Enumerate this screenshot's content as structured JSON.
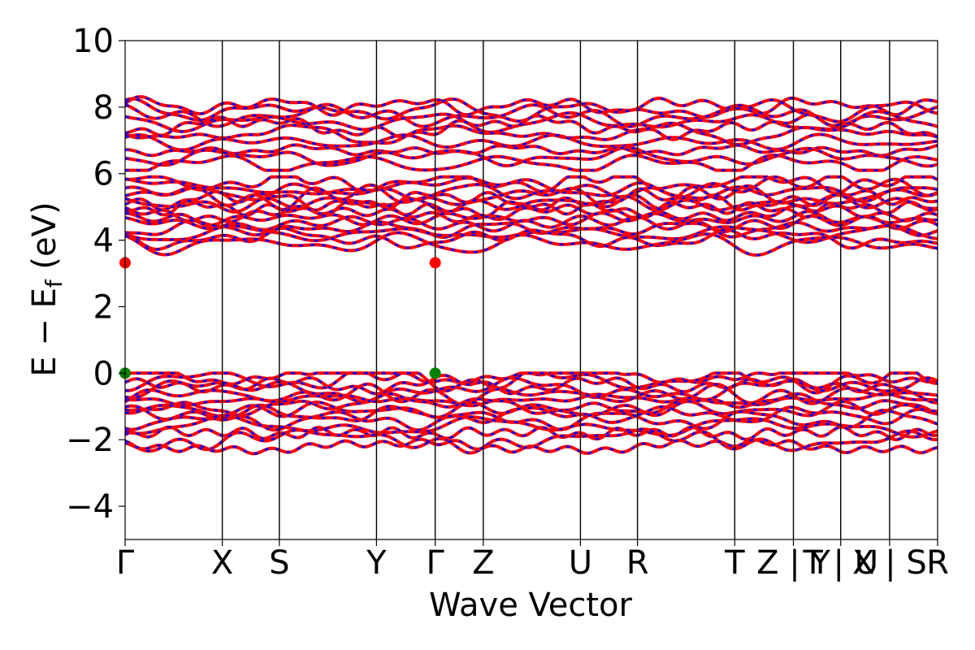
{
  "chart_data": {
    "type": "line",
    "title": "",
    "xlabel": "Wave Vector",
    "ylabel_main": "E − E",
    "ylabel_sub": "f",
    "ylabel_unit": " (eV)",
    "ylim": [
      -5,
      10
    ],
    "yticks": [
      -4,
      -2,
      0,
      2,
      4,
      6,
      8,
      10
    ],
    "ytick_labels": [
      "−4",
      "−2",
      "0",
      "2",
      "4",
      "6",
      "8",
      "10"
    ],
    "x_range": [
      0,
      1
    ],
    "kpoints": [
      {
        "label": "Γ",
        "x": 0.0
      },
      {
        "label": "X",
        "x": 0.1196
      },
      {
        "label": "S",
        "x": 0.1898
      },
      {
        "label": "Y",
        "x": 0.3094
      },
      {
        "label": "Γ",
        "x": 0.3816
      },
      {
        "label": "Z",
        "x": 0.4408
      },
      {
        "label": "U",
        "x": 0.5604
      },
      {
        "label": "R",
        "x": 0.6306
      },
      {
        "label": "T",
        "x": 0.7503
      },
      {
        "label": "Z | Y",
        "x": 0.8225
      },
      {
        "label": "T | U",
        "x": 0.8807
      },
      {
        "label": "X | S",
        "x": 0.9409
      },
      {
        "label": "R",
        "x": 1.0
      }
    ],
    "colors": {
      "band_main": "#ff0000",
      "band_dash": "#0000ff",
      "cbm_marker": "#ff0000",
      "vbm_marker": "#008000"
    },
    "band_groups": [
      {
        "name": "",
        "count": 10,
        "base": [
          8.05,
          7.9,
          7.75,
          7.55,
          7.4,
          7.2,
          6.95,
          6.7,
          6.5,
          6.3
        ],
        "range": [
          6.1,
          8.6
        ]
      },
      {
        "name": "",
        "count": 14,
        "base": [
          5.75,
          5.6,
          5.45,
          5.3,
          5.2,
          5.1,
          4.95,
          4.8,
          4.65,
          4.5,
          4.35,
          4.2,
          4.05,
          3.9
        ],
        "range": [
          3.3,
          5.9
        ]
      },
      {
        "name": "",
        "count": 14,
        "base": [
          -0.05,
          -0.2,
          -0.35,
          -0.5,
          -0.65,
          -0.8,
          -0.95,
          -1.1,
          -1.25,
          -1.4,
          -1.6,
          -1.8,
          -2.0,
          -2.2
        ],
        "range": [
          -2.5,
          0.0
        ]
      }
    ],
    "cbm_points": [
      {
        "x": 0.0,
        "y": 3.32
      },
      {
        "x": 0.3816,
        "y": 3.32
      }
    ],
    "vbm_points": [
      {
        "x": 0.0,
        "y": 0.0
      },
      {
        "x": 0.3816,
        "y": 0.0
      }
    ],
    "grid": false,
    "legend": "none"
  }
}
